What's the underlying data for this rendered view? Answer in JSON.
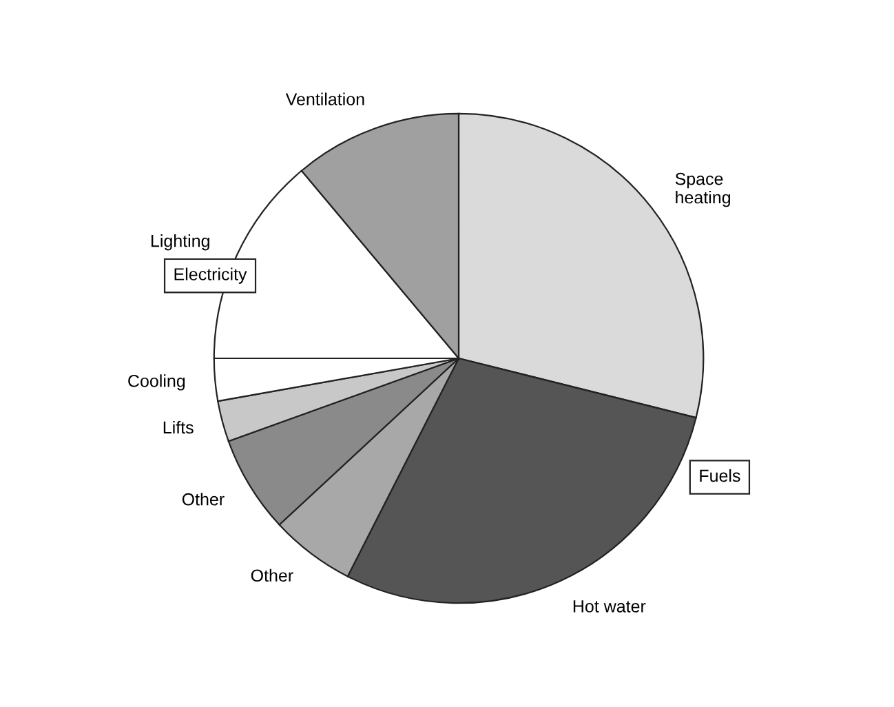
{
  "chart_data": {
    "type": "pie",
    "categories": [
      "Space\nheating",
      "Hot water",
      "Other",
      "Other",
      "Lifts",
      "Cooling",
      "Lighting",
      "Ventilation"
    ],
    "values": [
      28.9,
      28.6,
      5.6,
      6.4,
      2.7,
      2.8,
      13.9,
      11.1
    ],
    "colors": [
      "#dadada",
      "#555555",
      "#a8a8a8",
      "#8a8a8a",
      "#c8c8c8",
      "#ffffff",
      "#ffffff",
      "#a0a0a0"
    ],
    "annotations": [
      "Electricity",
      "Fuels"
    ]
  }
}
